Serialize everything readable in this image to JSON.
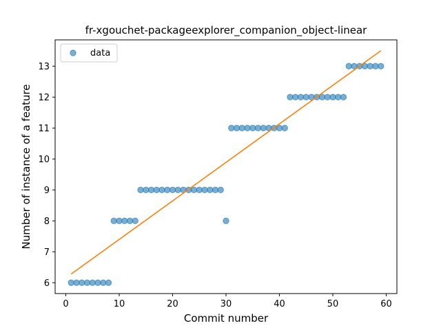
{
  "chart_data": {
    "type": "scatter",
    "title": "fr-xgouchet-packageexplorer_companion_object-linear",
    "xlabel": "Commit number",
    "ylabel": "Number of instance of a feature",
    "xlim": [
      -2,
      62
    ],
    "ylim": [
      5.65,
      13.85
    ],
    "xticks": [
      0,
      10,
      20,
      30,
      40,
      50,
      60
    ],
    "yticks": [
      6,
      7,
      8,
      9,
      10,
      11,
      12,
      13
    ],
    "grid": false,
    "legend": {
      "position": "top-left",
      "entries": [
        "data"
      ]
    },
    "series": [
      {
        "name": "data",
        "marker": "circle",
        "color": "#1f77b4",
        "x": [
          1,
          2,
          3,
          4,
          5,
          6,
          7,
          8,
          9,
          10,
          11,
          12,
          13,
          14,
          15,
          16,
          17,
          18,
          19,
          20,
          21,
          22,
          23,
          24,
          25,
          26,
          27,
          28,
          29,
          30,
          31,
          32,
          33,
          34,
          35,
          36,
          37,
          38,
          39,
          40,
          41,
          42,
          43,
          44,
          45,
          46,
          47,
          48,
          49,
          50,
          51,
          52,
          53,
          54,
          55,
          56,
          57,
          58,
          59
        ],
        "y": [
          6,
          6,
          6,
          6,
          6,
          6,
          6,
          6,
          8,
          8,
          8,
          8,
          8,
          9,
          9,
          9,
          9,
          9,
          9,
          9,
          9,
          9,
          9,
          9,
          9,
          9,
          9,
          9,
          9,
          8,
          11,
          11,
          11,
          11,
          11,
          11,
          11,
          11,
          11,
          11,
          11,
          12,
          12,
          12,
          12,
          12,
          12,
          12,
          12,
          12,
          12,
          12,
          13,
          13,
          13,
          13,
          13,
          13,
          13
        ]
      },
      {
        "name": "fit",
        "type": "line",
        "color": "#ff7f0e",
        "x": [
          1,
          59
        ],
        "y": [
          6.28,
          13.5
        ]
      }
    ]
  }
}
